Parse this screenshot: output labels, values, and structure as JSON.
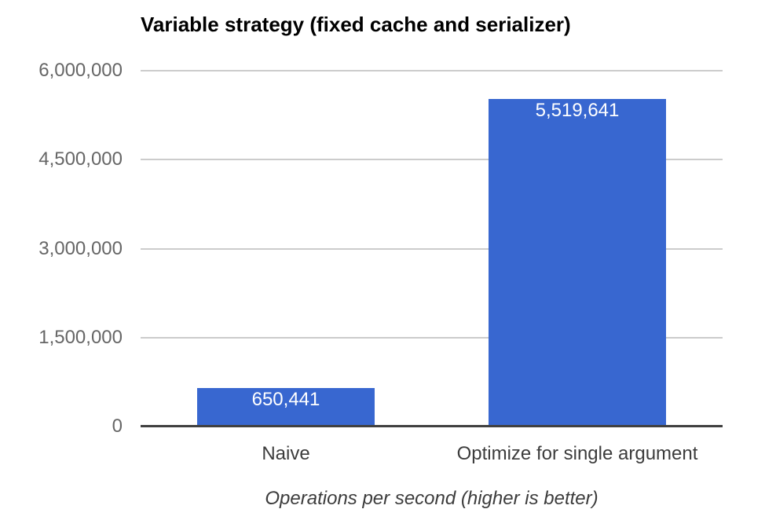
{
  "chart_data": {
    "type": "bar",
    "title": "Variable strategy (fixed cache and serializer)",
    "caption": "Operations per second (higher is better)",
    "categories": [
      "Naive",
      "Optimize for single argument"
    ],
    "values": [
      650441,
      5519641
    ],
    "value_labels": [
      "650,441",
      "5,519,641"
    ],
    "ylim": [
      0,
      6000000
    ],
    "yticks": [
      {
        "value": 0,
        "label": "0"
      },
      {
        "value": 1500000,
        "label": "1,500,000"
      },
      {
        "value": 3000000,
        "label": "3,000,000"
      },
      {
        "value": 4500000,
        "label": "4,500,000"
      },
      {
        "value": 6000000,
        "label": "6,000,000"
      }
    ],
    "grid": true,
    "legend": "none",
    "colors": {
      "bar": "#3867d0",
      "gridline": "#cccccc",
      "axis_line": "#404040",
      "tick_label": "#666666",
      "category_label": "#3c3c3c",
      "annotation": "#ffffff",
      "title": "#000000",
      "caption": "#3c3c3c"
    }
  }
}
